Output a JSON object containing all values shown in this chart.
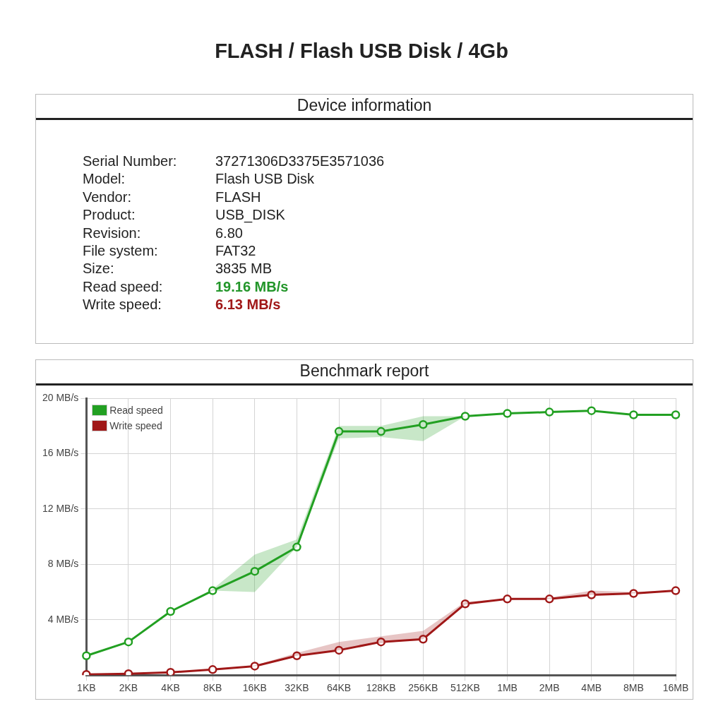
{
  "chart_data": [
    {
      "type": "other",
      "title": "FLASH / Flash USB Disk / 4Gb",
      "subtitle": "Device information",
      "annotations": [
        "Serial Number:",
        "37271306D3375E3571036",
        "Model:",
        "Flash USB Disk",
        "Vendor:",
        "FLASH",
        "Product:",
        "USB_DISK",
        "Revision:",
        "6.80",
        "File system:",
        "FAT32",
        "Size:",
        "3835 MB",
        "Read speed:",
        "19.16 MB/s",
        "Write speed:",
        "6.13 MB/s"
      ],
      "colors": [
        null,
        null,
        null,
        null,
        null,
        null,
        null,
        null,
        null,
        null,
        null,
        null,
        null,
        null,
        null,
        "#23962a",
        null,
        "#a01818"
      ]
    },
    {
      "type": "line",
      "title": "Benchmark report",
      "categories": [
        "1KB",
        "2KB",
        "4KB",
        "8KB",
        "16KB",
        "32KB",
        "64KB",
        "128KB",
        "256KB",
        "512KB",
        "1MB",
        "2MB",
        "4MB",
        "8MB",
        "16MB"
      ],
      "series": [
        {
          "name": "Read speed",
          "color": "#22a022",
          "values": [
            1.4,
            2.4,
            4.6,
            6.1,
            7.5,
            9.25,
            17.6,
            17.6,
            18.1,
            18.7,
            18.9,
            19.0,
            19.1,
            18.8,
            18.8
          ],
          "lower": [
            1.4,
            2.4,
            4.6,
            6.1,
            6.0,
            9.25,
            17.1,
            17.2,
            16.9,
            18.7,
            18.9,
            19.0,
            19.1,
            18.8,
            18.8
          ],
          "upper": [
            1.4,
            2.4,
            4.6,
            6.2,
            8.7,
            9.8,
            18.0,
            18.0,
            18.7,
            18.7,
            18.9,
            19.0,
            19.1,
            18.8,
            18.8
          ]
        },
        {
          "name": "Write speed",
          "color": "#a01818",
          "values": [
            0.05,
            0.1,
            0.2,
            0.4,
            0.65,
            1.4,
            1.8,
            2.4,
            2.6,
            5.15,
            5.5,
            5.5,
            5.8,
            5.9,
            6.1
          ],
          "lower": [
            0.05,
            0.1,
            0.2,
            0.4,
            0.65,
            1.4,
            1.8,
            2.3,
            2.6,
            5.1,
            5.5,
            5.5,
            5.8,
            5.9,
            6.1
          ],
          "upper": [
            0.05,
            0.1,
            0.2,
            0.4,
            0.7,
            1.6,
            2.4,
            2.8,
            3.2,
            5.3,
            5.5,
            5.6,
            6.1,
            6.0,
            6.13
          ]
        }
      ],
      "ylim": [
        0,
        20
      ],
      "yticks": [
        {
          "value": 4,
          "label": "4 MB/s"
        },
        {
          "value": 8,
          "label": "8 MB/s"
        },
        {
          "value": 12,
          "label": "12 MB/s"
        },
        {
          "value": 16,
          "label": "16 MB/s"
        },
        {
          "value": 20,
          "label": "20 MB/s"
        }
      ],
      "grid": true,
      "legend": "top left",
      "marker": "circle",
      "line_style": "solid"
    }
  ]
}
